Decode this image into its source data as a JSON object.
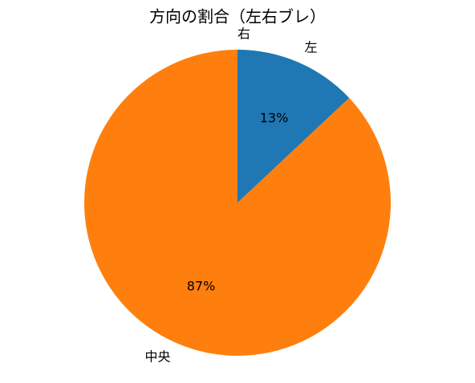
{
  "chart_data": {
    "type": "pie",
    "title": "方向の割合（左右ブレ）",
    "categories": [
      "左",
      "中央",
      "右"
    ],
    "values": [
      13,
      87,
      0
    ],
    "value_labels": [
      "13%",
      "87%",
      null
    ],
    "colors": [
      "#1f77b4",
      "#ff7f0e",
      "#2ca02c"
    ]
  }
}
